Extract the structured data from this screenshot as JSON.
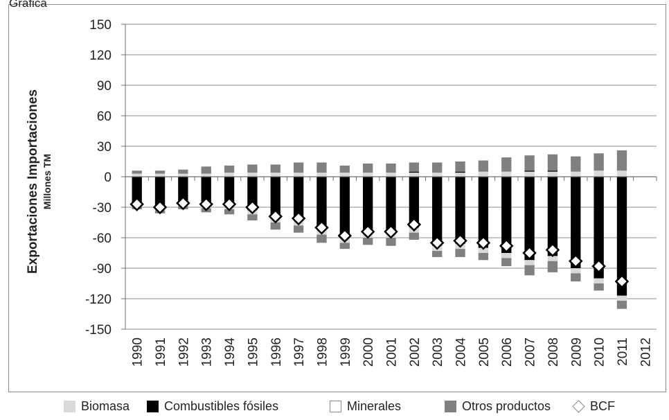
{
  "chart_data": {
    "type": "bar",
    "stacked": true,
    "title": "",
    "top_left_label": "Gráfica",
    "ylabel": "Exportaciones Importaciones",
    "ylabel_sub": "Millones TM",
    "ylim": [
      -150,
      150
    ],
    "yticks": [
      150,
      120,
      90,
      60,
      30,
      0,
      -30,
      -60,
      -90,
      -120,
      -150
    ],
    "categories": [
      "1990",
      "1991",
      "1992",
      "1993",
      "1994",
      "1995",
      "1996",
      "1997",
      "1998",
      "1999",
      "2000",
      "2001",
      "2002",
      "2003",
      "2004",
      "2005",
      "2006",
      "2007",
      "2008",
      "2009",
      "2010",
      "2011",
      "2012"
    ],
    "positive_series": [
      {
        "name": "Biomasa",
        "color": "#d9d9d9",
        "values": [
          3,
          3,
          3,
          3,
          4,
          4,
          4,
          4,
          4,
          4,
          4,
          4,
          4,
          4,
          4,
          5,
          5,
          5,
          5,
          5,
          6,
          6,
          null
        ]
      },
      {
        "name": "Combustibles fósiles",
        "color": "#000000",
        "values": [
          0,
          0,
          0,
          0,
          0,
          0,
          0,
          0,
          0,
          0,
          0,
          0,
          1,
          0,
          1,
          0,
          0,
          1,
          1,
          0,
          0,
          0,
          null
        ]
      },
      {
        "name": "Minerales",
        "color": "#ffffff",
        "values": [
          0,
          0,
          0,
          0,
          0,
          0,
          0,
          0,
          0,
          0,
          0,
          0,
          0,
          0,
          0,
          0,
          0,
          0,
          0,
          0,
          0,
          0,
          null
        ]
      },
      {
        "name": "Otros productos",
        "color": "#808080",
        "values": [
          3,
          3,
          4,
          7,
          7,
          8,
          8,
          10,
          10,
          7,
          9,
          9,
          9,
          10,
          10,
          11,
          14,
          15,
          16,
          15,
          17,
          20,
          null
        ]
      }
    ],
    "negative_series": [
      {
        "name": "Combustibles fósiles",
        "color": "#000000",
        "values": [
          -25,
          -28,
          -25,
          -27,
          -28,
          -33,
          -40,
          -43,
          -52,
          -60,
          -55,
          -55,
          -50,
          -68,
          -66,
          -70,
          -75,
          -82,
          -78,
          -90,
          -100,
          -117,
          null
        ]
      },
      {
        "name": "Biomasa",
        "color": "#d9d9d9",
        "values": [
          -4,
          -5,
          -4,
          -4,
          -4,
          -4,
          -5,
          -5,
          -5,
          -5,
          -5,
          -5,
          -5,
          -5,
          -5,
          -5,
          -5,
          -5,
          -5,
          -5,
          -5,
          -5,
          null
        ]
      },
      {
        "name": "Otros productos",
        "color": "#808080",
        "values": [
          -3,
          -3,
          -3,
          -4,
          -5,
          -6,
          -7,
          -7,
          -8,
          -6,
          -7,
          -8,
          -7,
          -6,
          -8,
          -7,
          -8,
          -10,
          -11,
          -8,
          -7,
          -8,
          null
        ]
      }
    ],
    "bcf": {
      "name": "BCF",
      "color": "#000000",
      "values": [
        -27,
        -30,
        -26,
        -27,
        -27,
        -30,
        -39,
        -41,
        -50,
        -58,
        -54,
        -54,
        -47,
        -65,
        -63,
        -65,
        -68,
        -75,
        -72,
        -83,
        -88,
        -103,
        null
      ]
    },
    "legend": [
      {
        "label": "Biomasa",
        "color": "#d9d9d9",
        "kind": "box"
      },
      {
        "label": "Combustibles fósiles",
        "color": "#000000",
        "kind": "box"
      },
      {
        "label": "Minerales",
        "color": "#ffffff",
        "kind": "box"
      },
      {
        "label": "Otros productos",
        "color": "#808080",
        "kind": "box"
      },
      {
        "label": "BCF",
        "color": "#ffffff",
        "kind": "diamond"
      }
    ],
    "legend_placement": "bottom",
    "grid": "horizontal"
  }
}
